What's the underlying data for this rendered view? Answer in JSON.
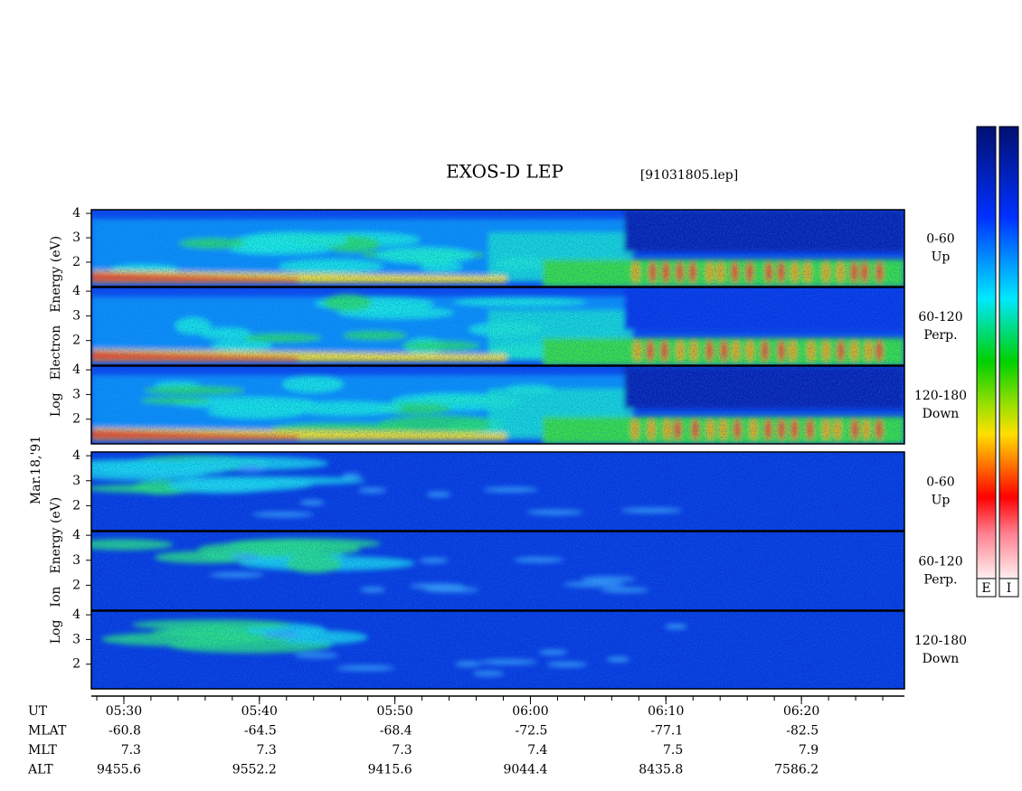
{
  "chart_data": {
    "type": "spectrogram",
    "title": "EXOS-D LEP",
    "file": "[91031805.lep]",
    "date": "Mar.18,'91",
    "groups": [
      {
        "label": [
          "Log",
          "Electron",
          "Energy (eV)"
        ]
      },
      {
        "label": [
          "Log",
          "Ion",
          "Energy (eV)"
        ]
      }
    ],
    "panels": [
      {
        "group": 0,
        "label": [
          "0-60",
          "Up"
        ]
      },
      {
        "group": 0,
        "label": [
          "60-120",
          "Perp."
        ]
      },
      {
        "group": 0,
        "label": [
          "120-180",
          "Down"
        ]
      },
      {
        "group": 1,
        "label": [
          "0-60",
          "Up"
        ]
      },
      {
        "group": 1,
        "label": [
          "60-120",
          "Perp."
        ]
      },
      {
        "group": 1,
        "label": [
          "120-180",
          "Down"
        ]
      }
    ],
    "ylim": [
      1,
      4.15
    ],
    "yticks": [
      2,
      3,
      4
    ],
    "xlim": [
      327.6,
      387.6
    ],
    "xticks": [
      {
        "value": 330,
        "label": "05:30"
      },
      {
        "value": 340,
        "label": "05:40"
      },
      {
        "value": 350,
        "label": "05:50"
      },
      {
        "value": 360,
        "label": "06:00"
      },
      {
        "value": 370,
        "label": "06:10"
      },
      {
        "value": 380,
        "label": "06:20"
      }
    ],
    "rows": [
      {
        "name": "UT"
      },
      {
        "name": "MLAT",
        "values": [
          "-60.8",
          "-64.5",
          "-68.4",
          "-72.5",
          "-77.1",
          "-82.5"
        ]
      },
      {
        "name": "MLT",
        "values": [
          "7.3",
          "7.3",
          "7.3",
          "7.4",
          "7.5",
          "7.9"
        ]
      },
      {
        "name": "ALT",
        "values": [
          "9455.6",
          "9552.2",
          "9415.6",
          "9044.4",
          "8435.8",
          "7586.2"
        ]
      }
    ],
    "colorbars": [
      "E",
      "I"
    ]
  }
}
